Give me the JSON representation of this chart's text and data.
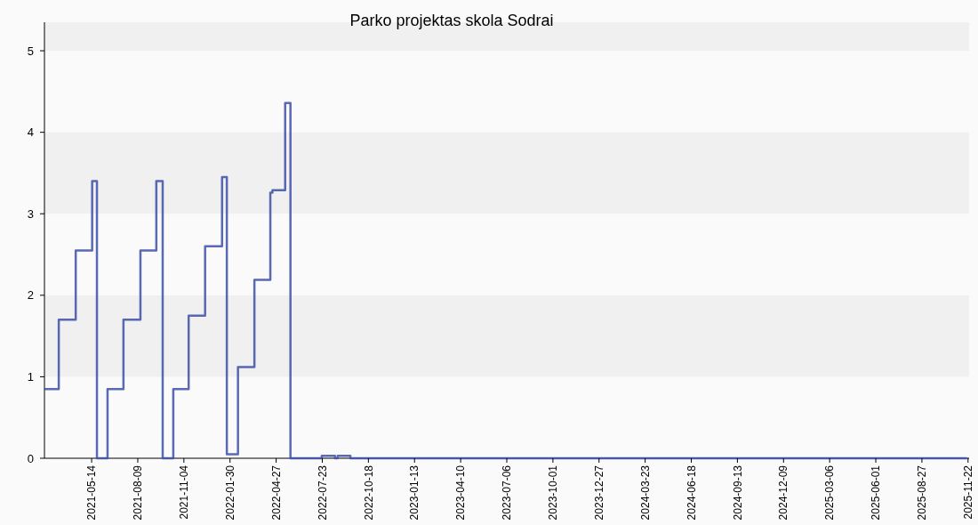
{
  "chart_data": {
    "type": "step",
    "title": "Parko projektas skola Sodrai",
    "x": [
      "2021-02-14",
      "2021-03-13",
      "2021-04-14",
      "2021-05-15",
      "2021-05-24",
      "2021-06-13",
      "2021-07-13",
      "2021-08-14",
      "2021-09-13",
      "2021-09-25",
      "2021-10-15",
      "2021-11-13",
      "2021-12-14",
      "2022-01-15",
      "2022-01-24",
      "2022-02-14",
      "2022-03-17",
      "2022-04-16",
      "2022-04-20",
      "2022-05-14",
      "2022-05-24",
      "2022-07-22",
      "2022-08-16",
      "2022-08-21",
      "2022-09-14",
      "2025-11-20"
    ],
    "series": [
      {
        "color": "#3d4fa8",
        "values": [
          0.85,
          1.7,
          2.55,
          3.4,
          0,
          0.85,
          1.7,
          2.55,
          3.4,
          0,
          0.85,
          1.75,
          2.6,
          3.45,
          0.05,
          1.12,
          2.19,
          3.26,
          3.29,
          4.36,
          0,
          0.03,
          0,
          0.03,
          0,
          0
        ]
      }
    ],
    "xlim": [
      "2021-02-14",
      "2025-11-24"
    ],
    "xticks": [
      "2021-05-14",
      "2021-08-09",
      "2021-11-04",
      "2022-01-30",
      "2022-04-27",
      "2022-07-23",
      "2022-10-18",
      "2023-01-13",
      "2023-04-10",
      "2023-07-06",
      "2023-10-01",
      "2023-12-27",
      "2024-03-23",
      "2024-06-18",
      "2024-09-13",
      "2024-12-09",
      "2025-03-06",
      "2025-06-01",
      "2025-08-27",
      "2025-11-22"
    ],
    "ylim": [
      0,
      5.35
    ],
    "yticks": [
      0,
      1,
      2,
      3,
      4,
      5
    ]
  }
}
